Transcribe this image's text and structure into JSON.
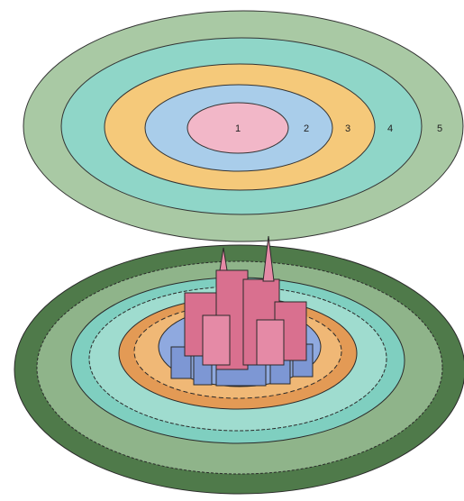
{
  "zones": [
    {
      "label": "1"
    },
    {
      "label": "2"
    },
    {
      "label": "3"
    },
    {
      "label": "4"
    },
    {
      "label": "5"
    }
  ]
}
